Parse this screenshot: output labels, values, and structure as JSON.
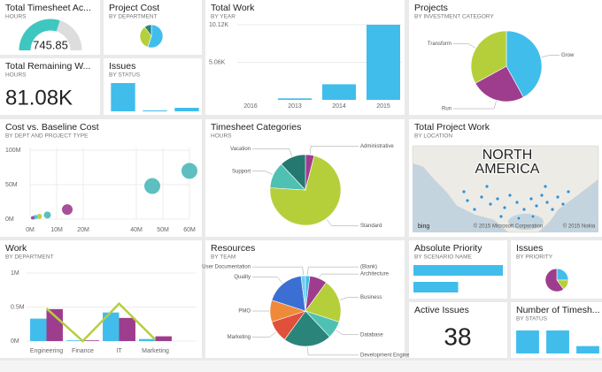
{
  "tiles": [
    {
      "type": "gauge",
      "title": "Total Timesheet Ac...",
      "subtitle": "HOURS",
      "value": 745.85,
      "range": [
        0,
        1250
      ],
      "color": "#3ec7c0"
    },
    {
      "type": "pie",
      "title": "Project Cost",
      "subtitle": "BY DEPARTMENT",
      "values": [
        55,
        35,
        10
      ],
      "colors": [
        "#41bdec",
        "#b5cf3b",
        "#2a8479"
      ]
    },
    {
      "type": "bar",
      "title": "Total Work",
      "subtitle": "BY YEAR",
      "categories": [
        "2016",
        "2013",
        "2014",
        "2015"
      ],
      "values": [
        0,
        200,
        2100,
        10120
      ],
      "color": "#41bdec",
      "ylim": [
        0,
        10120
      ],
      "yticks": [
        {
          "value": 5060,
          "label": "5.06K"
        },
        {
          "value": 10120,
          "label": "10.12K"
        }
      ]
    },
    {
      "type": "pie",
      "title": "Projects",
      "subtitle": "BY INVESTMENT CATEGORY",
      "labels": [
        "Grow",
        "Run",
        "Transform"
      ],
      "values": [
        42,
        25,
        33
      ],
      "colors": [
        "#41bdec",
        "#9e3d8e",
        "#b5cf3b"
      ]
    },
    {
      "type": "kpi",
      "title": "Total Remaining W...",
      "subtitle": "HOURS",
      "value": "81.08K"
    },
    {
      "type": "bar",
      "title": "Issues",
      "subtitle": "BY STATUS",
      "values": [
        32,
        1,
        4
      ],
      "color": "#41bdec",
      "ylim": [
        0,
        32
      ]
    },
    {
      "type": "scatter",
      "title": "Cost vs. Baseline Cost",
      "subtitle": "BY DEPT AND PROJECT TYPE",
      "x": [
        60000000,
        46000000,
        14000000,
        6500000,
        3500000,
        2000000,
        1000000
      ],
      "values": [
        70000000,
        48000000,
        14000000,
        6000000,
        4000000,
        3000000,
        2000000
      ],
      "sizes": [
        81,
        81,
        36,
        16,
        9,
        6,
        4
      ],
      "colors": [
        "#4bb8b8",
        "#4bb8b8",
        "#9e3d8e",
        "#4bb8b8",
        "#b5cf3b",
        "#41bdec",
        "#9e3d8e"
      ],
      "xlim": [
        0,
        60000000
      ],
      "ylim": [
        0,
        100000000
      ],
      "xticks": [
        {
          "value": 0,
          "label": "0M"
        },
        {
          "value": 10000000,
          "label": "10M"
        },
        {
          "value": 20000000,
          "label": "20M"
        },
        {
          "value": 40000000,
          "label": "40M"
        },
        {
          "value": 50000000,
          "label": "50M"
        },
        {
          "value": 60000000,
          "label": "60M"
        }
      ],
      "yticks": [
        {
          "value": 0,
          "label": "0M"
        },
        {
          "value": 50000000,
          "label": "50M"
        },
        {
          "value": 100000000,
          "label": "100M"
        }
      ]
    },
    {
      "type": "pie",
      "title": "Timesheet Categories",
      "subtitle": "HOURS",
      "labels": [
        "Administrative",
        "Standard",
        "Support",
        "Vacation"
      ],
      "values": [
        4,
        72,
        12,
        12
      ],
      "colors": [
        "#9e3d8e",
        "#b5cf3b",
        "#4fc1b3",
        "#25786f"
      ]
    },
    {
      "type": "map",
      "title": "Total Project Work",
      "subtitle": "BY LOCATION",
      "label_lines": [
        "NORTH",
        "AMERICA"
      ],
      "logo": "bing",
      "credits": [
        "© 2015 Microsoft Corporation",
        "© 2015 Nokia"
      ]
    },
    {
      "type": "combo",
      "title": "Work",
      "subtitle": "BY DEPARTMENT",
      "categories": [
        "Engineering",
        "Finance",
        "IT",
        "Marketing"
      ],
      "series": [
        {
          "type": "bar",
          "color": "#41bdec",
          "values": [
            330000,
            10000,
            420000,
            30000
          ]
        },
        {
          "type": "bar",
          "color": "#9e3d8e",
          "values": [
            470000,
            10000,
            340000,
            70000
          ]
        },
        {
          "type": "line",
          "color": "#b5cf3b",
          "values": [
            480000,
            0,
            550000,
            20000
          ]
        }
      ],
      "ylim": [
        0,
        1000000
      ],
      "yticks": [
        {
          "value": 0,
          "label": "0M"
        },
        {
          "value": 500000,
          "label": "0.5M"
        },
        {
          "value": 1000000,
          "label": "1M"
        }
      ]
    },
    {
      "type": "pie",
      "title": "Resources",
      "subtitle": "BY TEAM",
      "labels": [
        "(Blank)",
        "Architecture",
        "Business",
        "Database",
        "Development Engine...",
        "Marketing",
        "PMO",
        "Quality",
        "User Documentation"
      ],
      "values": [
        2,
        8,
        20,
        8,
        22,
        10,
        10,
        18,
        2
      ],
      "colors": [
        "#41bdec",
        "#9e3d8e",
        "#b5cf3b",
        "#4fc1b3",
        "#2a8479",
        "#e1503a",
        "#ef8a3b",
        "#3b6fd4",
        "#6ccff0"
      ]
    },
    {
      "type": "hbar",
      "title": "Absolute Priority",
      "subtitle": "BY SCENARIO NAME",
      "values": [
        100,
        50
      ],
      "color": "#41bdec",
      "xlim": [
        0,
        100
      ]
    },
    {
      "type": "pie",
      "title": "Issues",
      "subtitle": "BY PRIORITY",
      "values": [
        25,
        15,
        60
      ],
      "colors": [
        "#41bdec",
        "#b5cf3b",
        "#9e3d8e"
      ]
    },
    {
      "type": "kpi",
      "title": "Active Issues",
      "value": 38
    },
    {
      "type": "bar",
      "title": "Number of Timesh...",
      "subtitle": "BY STATUS",
      "values": [
        25,
        25,
        8
      ],
      "color": "#41bdec",
      "ylim": [
        0,
        25
      ]
    }
  ]
}
